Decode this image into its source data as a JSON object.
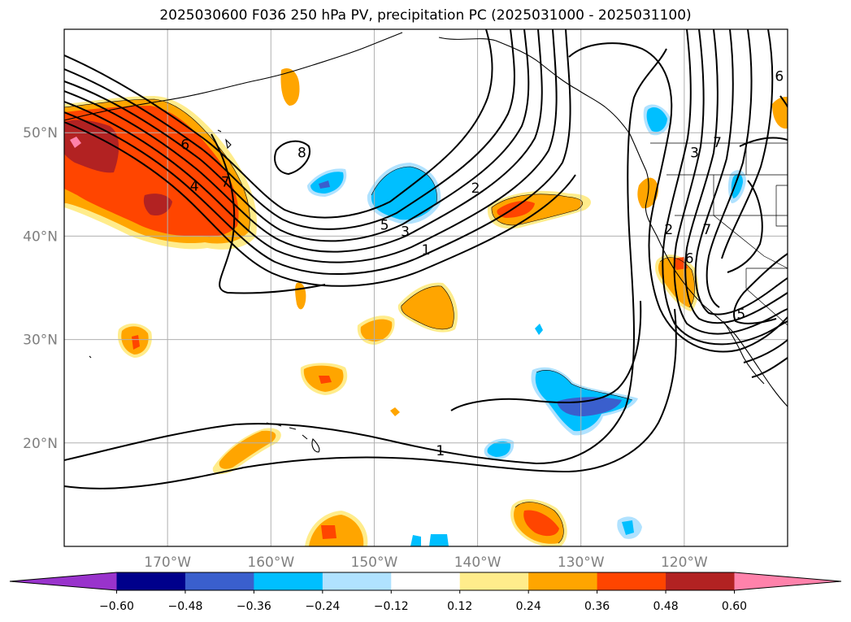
{
  "title": "2025030600 F036 250 hPa PV, precipitation PC (2025031000 - 2025031100)",
  "map": {
    "lon_range": [
      -180,
      -110
    ],
    "lat_range": [
      10,
      60
    ],
    "lat_ticks": [
      {
        "value": 20,
        "label": "20°N"
      },
      {
        "value": 30,
        "label": "30°N"
      },
      {
        "value": 40,
        "label": "40°N"
      },
      {
        "value": 50,
        "label": "50°N"
      }
    ],
    "lon_ticks": [
      {
        "value": -170,
        "label": "170°W"
      },
      {
        "value": -160,
        "label": "160°W"
      },
      {
        "value": -150,
        "label": "150°W"
      },
      {
        "value": -140,
        "label": "140°W"
      },
      {
        "value": -130,
        "label": "130°W"
      },
      {
        "value": -120,
        "label": "120°W"
      }
    ],
    "grid": true
  },
  "colorbar": {
    "extend": "both",
    "colors": [
      "#9933cc",
      "#00008b",
      "#3a5fcd",
      "#00bfff",
      "#b0e2ff",
      "#ffffff",
      "#ffec8b",
      "#ffa500",
      "#ff4500",
      "#b22222",
      "#ff82ab"
    ],
    "ticks": [
      {
        "value": -0.6,
        "label": "−0.60"
      },
      {
        "value": -0.48,
        "label": "−0.48"
      },
      {
        "value": -0.36,
        "label": "−0.36"
      },
      {
        "value": -0.24,
        "label": "−0.24"
      },
      {
        "value": -0.12,
        "label": "−0.12"
      },
      {
        "value": 0.12,
        "label": "0.12"
      },
      {
        "value": 0.24,
        "label": "0.24"
      },
      {
        "value": 0.36,
        "label": "0.36"
      },
      {
        "value": 0.48,
        "label": "0.48"
      },
      {
        "value": 0.6,
        "label": "0.60"
      }
    ]
  },
  "pv_contour_labels": [
    {
      "text": "6",
      "lon": -168.3,
      "lat": 48.8
    },
    {
      "text": "4",
      "lon": -167.4,
      "lat": 44.8
    },
    {
      "text": "7",
      "lon": -164.4,
      "lat": 45.2
    },
    {
      "text": "8",
      "lon": -157.0,
      "lat": 48.0
    },
    {
      "text": "5",
      "lon": -149.0,
      "lat": 41.0
    },
    {
      "text": "3",
      "lon": -147.0,
      "lat": 40.4
    },
    {
      "text": "1",
      "lon": -145.0,
      "lat": 38.6
    },
    {
      "text": "2",
      "lon": -140.2,
      "lat": 44.6
    },
    {
      "text": "1",
      "lon": -143.6,
      "lat": 19.2
    },
    {
      "text": "3",
      "lon": -119.0,
      "lat": 48.0
    },
    {
      "text": "7",
      "lon": -116.8,
      "lat": 49.0
    },
    {
      "text": "2",
      "lon": -121.5,
      "lat": 40.6
    },
    {
      "text": "7",
      "lon": -117.8,
      "lat": 40.6
    },
    {
      "text": "6",
      "lon": -119.5,
      "lat": 37.8
    },
    {
      "text": "5",
      "lon": -114.5,
      "lat": 32.4
    },
    {
      "text": "6",
      "lon": -110.8,
      "lat": 55.4
    }
  ]
}
